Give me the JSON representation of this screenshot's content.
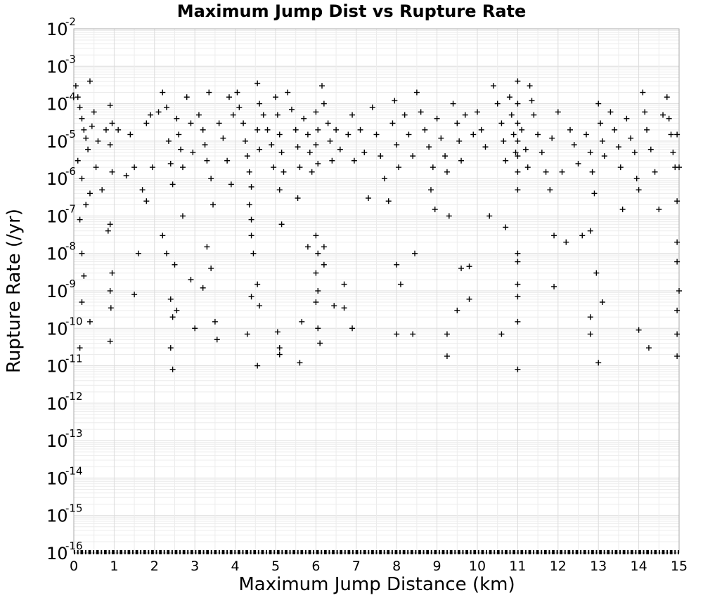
{
  "chart_data": {
    "type": "scatter",
    "title": "Maximum Jump Dist vs Rupture Rate",
    "xlabel": "Maximum Jump Distance (km)",
    "ylabel": "Rupture Rate (/yr)",
    "xlim": [
      0,
      15
    ],
    "ylim": [
      1e-16,
      0.01
    ],
    "y_scale": "log",
    "grid": true,
    "marker": "plus",
    "marker_color": "#000000",
    "x_ticks": [
      "0",
      "1",
      "2",
      "3",
      "4",
      "5",
      "6",
      "7",
      "8",
      "9",
      "10",
      "11",
      "12",
      "13",
      "14",
      "15"
    ],
    "y_ticks": [
      {
        "base": "10",
        "exp": "-2"
      },
      {
        "base": "10",
        "exp": "-3"
      },
      {
        "base": "10",
        "exp": "-4"
      },
      {
        "base": "10",
        "exp": "-5"
      },
      {
        "base": "10",
        "exp": "-6"
      },
      {
        "base": "10",
        "exp": "-7"
      },
      {
        "base": "10",
        "exp": "-8"
      },
      {
        "base": "10",
        "exp": "-9"
      },
      {
        "base": "10",
        "exp": "-10"
      },
      {
        "base": "10",
        "exp": "-11"
      },
      {
        "base": "10",
        "exp": "-12"
      },
      {
        "base": "10",
        "exp": "-13"
      },
      {
        "base": "10",
        "exp": "-14"
      },
      {
        "base": "10",
        "exp": "-15"
      },
      {
        "base": "10",
        "exp": "-16"
      }
    ],
    "points": [
      [
        0.05,
        0.0003
      ],
      [
        0.1,
        0.00015
      ],
      [
        0.15,
        8e-05
      ],
      [
        0.2,
        4e-05
      ],
      [
        0.25,
        2e-05
      ],
      [
        0.3,
        1.2e-05
      ],
      [
        0.35,
        6e-06
      ],
      [
        0.1,
        3e-06
      ],
      [
        0.2,
        1e-06
      ],
      [
        0.4,
        4e-07
      ],
      [
        0.3,
        2e-07
      ],
      [
        0.15,
        8e-08
      ],
      [
        0.2,
        1e-08
      ],
      [
        0.25,
        2.5e-09
      ],
      [
        0.2,
        5e-10
      ],
      [
        0.4,
        1.5e-10
      ],
      [
        0.15,
        3e-11
      ],
      [
        0.4,
        0.0004
      ],
      [
        0.5,
        6e-05
      ],
      [
        0.45,
        2.5e-05
      ],
      [
        0.6,
        1e-05
      ],
      [
        0.55,
        2e-06
      ],
      [
        0.7,
        5e-07
      ],
      [
        0.8,
        2e-05
      ],
      [
        0.9,
        9e-05
      ],
      [
        0.95,
        3e-05
      ],
      [
        0.9,
        8e-06
      ],
      [
        0.95,
        1.5e-06
      ],
      [
        0.85,
        4e-08
      ],
      [
        0.9,
        6e-08
      ],
      [
        0.95,
        3e-09
      ],
      [
        0.9,
        1e-09
      ],
      [
        0.92,
        3.5e-10
      ],
      [
        0.9,
        4.5e-11
      ],
      [
        1.1,
        2e-05
      ],
      [
        1.3,
        1.2e-06
      ],
      [
        1.4,
        1.5e-05
      ],
      [
        1.5,
        2e-06
      ],
      [
        1.6,
        1e-08
      ],
      [
        1.5,
        8e-10
      ],
      [
        1.7,
        5e-07
      ],
      [
        1.8,
        3e-05
      ],
      [
        1.9,
        5e-05
      ],
      [
        1.95,
        2e-06
      ],
      [
        1.8,
        2.5e-07
      ],
      [
        2.1,
        6e-05
      ],
      [
        2.2,
        0.0002
      ],
      [
        2.3,
        8e-05
      ],
      [
        2.35,
        1e-05
      ],
      [
        2.4,
        2.5e-06
      ],
      [
        2.45,
        7e-07
      ],
      [
        2.2,
        3e-08
      ],
      [
        2.3,
        1e-08
      ],
      [
        2.4,
        6e-10
      ],
      [
        2.45,
        2e-10
      ],
      [
        2.4,
        3e-11
      ],
      [
        2.45,
        8e-12
      ],
      [
        2.55,
        4e-05
      ],
      [
        2.6,
        1.5e-05
      ],
      [
        2.65,
        6e-06
      ],
      [
        2.7,
        2e-06
      ],
      [
        2.5,
        5e-09
      ],
      [
        2.55,
        3e-10
      ],
      [
        2.7,
        1e-07
      ],
      [
        2.8,
        0.00015
      ],
      [
        2.9,
        3e-05
      ],
      [
        2.95,
        5e-06
      ],
      [
        2.9,
        2e-09
      ],
      [
        3.1,
        5e-05
      ],
      [
        3.2,
        2e-05
      ],
      [
        3.25,
        8e-06
      ],
      [
        3.3,
        3e-06
      ],
      [
        3.35,
        0.0002
      ],
      [
        3.4,
        1e-06
      ],
      [
        3.45,
        2e-07
      ],
      [
        3.2,
        1.2e-09
      ],
      [
        3.0,
        1e-10
      ],
      [
        3.3,
        1.5e-08
      ],
      [
        3.4,
        4e-09
      ],
      [
        3.5,
        1.5e-10
      ],
      [
        3.55,
        5e-11
      ],
      [
        3.6,
        3e-05
      ],
      [
        3.7,
        1.2e-05
      ],
      [
        3.8,
        3e-06
      ],
      [
        3.9,
        7e-07
      ],
      [
        3.85,
        0.00015
      ],
      [
        3.95,
        5e-05
      ],
      [
        4.05,
        0.0002
      ],
      [
        4.1,
        8e-05
      ],
      [
        4.2,
        3e-05
      ],
      [
        4.25,
        1e-05
      ],
      [
        4.3,
        4e-06
      ],
      [
        4.35,
        1.5e-06
      ],
      [
        4.4,
        6e-07
      ],
      [
        4.35,
        2e-07
      ],
      [
        4.4,
        8e-08
      ],
      [
        4.4,
        3e-08
      ],
      [
        4.45,
        1e-08
      ],
      [
        4.4,
        7e-10
      ],
      [
        4.3,
        7e-11
      ],
      [
        4.55,
        0.00035
      ],
      [
        4.6,
        0.0001
      ],
      [
        4.55,
        2e-05
      ],
      [
        4.6,
        6e-06
      ],
      [
        4.55,
        1.5e-09
      ],
      [
        4.6,
        4e-10
      ],
      [
        4.55,
        1e-11
      ],
      [
        4.7,
        5e-05
      ],
      [
        4.8,
        2e-05
      ],
      [
        4.9,
        8e-06
      ],
      [
        4.95,
        2e-06
      ],
      [
        5.0,
        0.00015
      ],
      [
        5.05,
        5e-05
      ],
      [
        5.1,
        1.5e-05
      ],
      [
        5.15,
        5e-06
      ],
      [
        5.2,
        1.5e-06
      ],
      [
        5.1,
        5e-07
      ],
      [
        5.15,
        6e-08
      ],
      [
        5.05,
        8e-11
      ],
      [
        5.1,
        3e-11
      ],
      [
        5.1,
        2e-11
      ],
      [
        5.3,
        0.0002
      ],
      [
        5.4,
        7e-05
      ],
      [
        5.5,
        2e-05
      ],
      [
        5.55,
        7e-06
      ],
      [
        5.6,
        2e-06
      ],
      [
        5.55,
        3e-07
      ],
      [
        5.65,
        1.5e-10
      ],
      [
        5.6,
        1.2e-11
      ],
      [
        5.7,
        4e-05
      ],
      [
        5.8,
        1.5e-05
      ],
      [
        5.85,
        5e-06
      ],
      [
        5.9,
        1.5e-06
      ],
      [
        5.8,
        1.5e-08
      ],
      [
        6.0,
        6e-05
      ],
      [
        6.05,
        2e-05
      ],
      [
        6.0,
        8e-06
      ],
      [
        6.05,
        2.5e-06
      ],
      [
        6.0,
        3e-08
      ],
      [
        6.05,
        1e-08
      ],
      [
        6.0,
        3e-09
      ],
      [
        6.05,
        1e-09
      ],
      [
        6.0,
        5e-10
      ],
      [
        6.05,
        1e-10
      ],
      [
        6.1,
        4e-11
      ],
      [
        6.15,
        0.0003
      ],
      [
        6.2,
        0.0001
      ],
      [
        6.3,
        3e-05
      ],
      [
        6.35,
        1e-05
      ],
      [
        6.4,
        3e-06
      ],
      [
        6.2,
        5e-09
      ],
      [
        6.2,
        1.5e-08
      ],
      [
        6.45,
        4e-10
      ],
      [
        6.5,
        2e-05
      ],
      [
        6.6,
        6e-06
      ],
      [
        6.7,
        1.5e-09
      ],
      [
        6.7,
        3.5e-10
      ],
      [
        6.8,
        1.5e-05
      ],
      [
        6.9,
        5e-05
      ],
      [
        6.95,
        3e-06
      ],
      [
        6.9,
        1e-10
      ],
      [
        7.1,
        2e-05
      ],
      [
        7.2,
        5e-06
      ],
      [
        7.3,
        3e-07
      ],
      [
        7.4,
        8e-05
      ],
      [
        7.5,
        1.5e-05
      ],
      [
        7.6,
        4e-06
      ],
      [
        7.7,
        1e-06
      ],
      [
        7.8,
        2.5e-07
      ],
      [
        7.9,
        3e-05
      ],
      [
        7.95,
        0.00012
      ],
      [
        8.0,
        8e-06
      ],
      [
        8.05,
        2e-06
      ],
      [
        8.0,
        5e-09
      ],
      [
        8.0,
        7e-11
      ],
      [
        8.1,
        1.5e-09
      ],
      [
        8.2,
        5e-05
      ],
      [
        8.3,
        1.5e-05
      ],
      [
        8.4,
        4e-06
      ],
      [
        8.45,
        1e-08
      ],
      [
        8.4,
        7e-11
      ],
      [
        8.5,
        0.0002
      ],
      [
        8.6,
        6e-05
      ],
      [
        8.7,
        2e-05
      ],
      [
        8.8,
        7e-06
      ],
      [
        8.9,
        2e-06
      ],
      [
        8.85,
        5e-07
      ],
      [
        8.95,
        1.5e-07
      ],
      [
        9.0,
        4e-05
      ],
      [
        9.1,
        1.2e-05
      ],
      [
        9.2,
        4e-06
      ],
      [
        9.25,
        1.5e-06
      ],
      [
        9.3,
        1e-07
      ],
      [
        9.25,
        7e-11
      ],
      [
        9.25,
        1.8e-11
      ],
      [
        9.4,
        0.0001
      ],
      [
        9.5,
        3e-05
      ],
      [
        9.55,
        1e-05
      ],
      [
        9.6,
        3e-06
      ],
      [
        9.5,
        3e-10
      ],
      [
        9.6,
        4e-09
      ],
      [
        9.8,
        4.5e-09
      ],
      [
        9.8,
        6e-10
      ],
      [
        9.7,
        5e-05
      ],
      [
        9.9,
        1.5e-05
      ],
      [
        10.0,
        6e-05
      ],
      [
        10.1,
        2e-05
      ],
      [
        10.2,
        7e-06
      ],
      [
        10.3,
        1e-07
      ],
      [
        10.4,
        0.0003
      ],
      [
        10.5,
        0.0001
      ],
      [
        10.6,
        3e-05
      ],
      [
        10.65,
        1e-05
      ],
      [
        10.7,
        3e-06
      ],
      [
        10.7,
        5e-08
      ],
      [
        10.6,
        7e-11
      ],
      [
        10.8,
        0.00015
      ],
      [
        10.85,
        5e-05
      ],
      [
        10.9,
        1.5e-05
      ],
      [
        10.95,
        5e-06
      ],
      [
        11.0,
        0.0004
      ],
      [
        11.0,
        0.0001
      ],
      [
        11.0,
        3e-05
      ],
      [
        11.0,
        1e-05
      ],
      [
        11.0,
        4e-06
      ],
      [
        11.0,
        1.5e-06
      ],
      [
        11.0,
        5e-07
      ],
      [
        11.0,
        1e-08
      ],
      [
        11.0,
        6e-09
      ],
      [
        11.0,
        1.5e-09
      ],
      [
        11.0,
        7e-10
      ],
      [
        11.0,
        1.5e-10
      ],
      [
        11.0,
        8e-12
      ],
      [
        11.1,
        2e-05
      ],
      [
        11.2,
        6e-06
      ],
      [
        11.25,
        2e-06
      ],
      [
        11.3,
        0.0003
      ],
      [
        11.35,
        0.00012
      ],
      [
        11.4,
        5e-05
      ],
      [
        11.5,
        1.5e-05
      ],
      [
        11.6,
        5e-06
      ],
      [
        11.7,
        1.5e-06
      ],
      [
        11.8,
        5e-07
      ],
      [
        11.85,
        1.2e-05
      ],
      [
        11.9,
        1.3e-09
      ],
      [
        11.9,
        3e-08
      ],
      [
        12.0,
        6e-05
      ],
      [
        12.1,
        1.5e-06
      ],
      [
        12.2,
        2e-08
      ],
      [
        12.3,
        2e-05
      ],
      [
        12.4,
        8e-06
      ],
      [
        12.5,
        2.5e-06
      ],
      [
        12.6,
        3e-08
      ],
      [
        12.7,
        1.5e-05
      ],
      [
        12.8,
        5e-06
      ],
      [
        12.85,
        1.5e-06
      ],
      [
        12.8,
        4e-08
      ],
      [
        12.8,
        2e-10
      ],
      [
        12.8,
        7e-11
      ],
      [
        12.9,
        4e-07
      ],
      [
        12.95,
        3e-09
      ],
      [
        13.0,
        0.0001
      ],
      [
        13.05,
        3e-05
      ],
      [
        13.1,
        1e-05
      ],
      [
        13.15,
        4e-06
      ],
      [
        13.0,
        1.2e-11
      ],
      [
        13.1,
        5e-10
      ],
      [
        13.3,
        6e-05
      ],
      [
        13.4,
        2e-05
      ],
      [
        13.5,
        7e-06
      ],
      [
        13.55,
        2e-06
      ],
      [
        13.6,
        1.5e-07
      ],
      [
        13.7,
        4e-05
      ],
      [
        13.8,
        1.2e-05
      ],
      [
        13.9,
        5e-06
      ],
      [
        13.95,
        1e-06
      ],
      [
        14.0,
        9e-11
      ],
      [
        14.0,
        5e-07
      ],
      [
        14.1,
        0.0002
      ],
      [
        14.15,
        6e-05
      ],
      [
        14.2,
        2e-05
      ],
      [
        14.25,
        3e-11
      ],
      [
        14.3,
        6e-06
      ],
      [
        14.4,
        1.5e-06
      ],
      [
        14.5,
        1.5e-07
      ],
      [
        14.6,
        5e-05
      ],
      [
        14.7,
        0.00015
      ],
      [
        14.75,
        4e-05
      ],
      [
        14.8,
        1.5e-05
      ],
      [
        14.85,
        5e-06
      ],
      [
        14.9,
        2e-06
      ],
      [
        14.95,
        2.5e-07
      ],
      [
        14.95,
        2e-08
      ],
      [
        14.95,
        6e-09
      ],
      [
        14.95,
        3e-10
      ],
      [
        14.95,
        7e-11
      ],
      [
        14.95,
        1.8e-11
      ],
      [
        15.0,
        1e-09
      ],
      [
        14.95,
        1.5e-05
      ],
      [
        15.0,
        2e-06
      ]
    ]
  }
}
